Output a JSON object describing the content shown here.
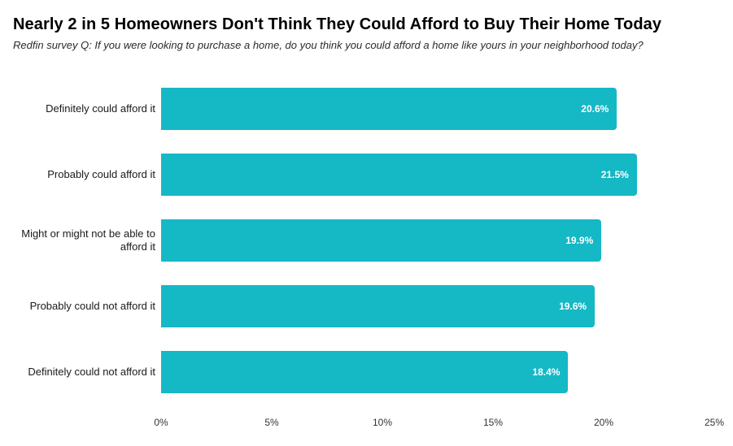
{
  "page": {
    "title": "Nearly 2 in 5 Homeowners Don't Think They Could Afford to Buy Their Home Today",
    "subtitle": "Redfin survey Q: If you were looking to purchase a home, do you think you could afford a home like yours in your neighborhood today?"
  },
  "chart_data": {
    "type": "bar",
    "orientation": "horizontal",
    "title": "Nearly 2 in 5 Homeowners Don't Think They Could Afford to Buy Their Home Today",
    "subtitle": "Redfin survey Q: If you were looking to purchase a home, do you think you could afford a home like yours in your neighborhood today?",
    "categories": [
      "Definitely could afford it",
      "Probably could afford it",
      "Might or might not be able to afford it",
      "Probably could not afford it",
      "Definitely could not afford it"
    ],
    "values": [
      20.6,
      21.5,
      19.9,
      19.6,
      18.4
    ],
    "value_labels": [
      "20.6%",
      "21.5%",
      "19.9%",
      "19.6%",
      "18.4%"
    ],
    "xlabel": "",
    "ylabel": "",
    "xlim": [
      0,
      25
    ],
    "x_tick_values": [
      0,
      5,
      10,
      15,
      20,
      25
    ],
    "x_tick_labels": [
      "0%",
      "5%",
      "10%",
      "15%",
      "20%",
      "25%"
    ],
    "grid": false,
    "legend": "none",
    "bar_color": "#15b8c5",
    "value_label_color": "#ffffff"
  }
}
